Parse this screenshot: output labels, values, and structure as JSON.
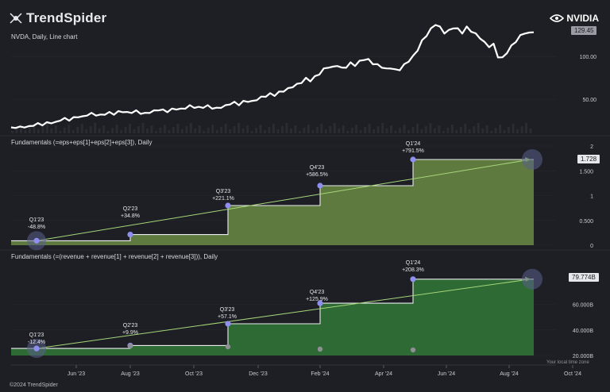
{
  "header": {
    "logo_text": "TrendSpider",
    "brand": "NVIDIA",
    "chart_title": "NVDA, Daily, Line chart",
    "price_badge": "129.45",
    "copyright": "©2024 TrendSpider",
    "timezone_note": "Your local time zone"
  },
  "colors": {
    "background": "#1e1f24",
    "price_line": "#ffffff",
    "eps_fill": "#5e7a3f",
    "rev_fill": "#2e6a34",
    "trend": "#a6d77a",
    "marker": "#8f8ff0"
  },
  "chart_data": [
    {
      "type": "line",
      "title": "NVDA, Daily, Line chart",
      "ylim": [
        12,
        142
      ],
      "y_ticks": [
        "50.00",
        "100.00"
      ],
      "series": [
        {
          "values": [
            16,
            17.5,
            17,
            18,
            17.5,
            20,
            21,
            20.5,
            22,
            23,
            22.5,
            26,
            27,
            26,
            28,
            30,
            29,
            32,
            33,
            32,
            31,
            33,
            34,
            33,
            35,
            36,
            34,
            35,
            36,
            34,
            33,
            35,
            36,
            38,
            37,
            36,
            38,
            39,
            38,
            40,
            42,
            41,
            40,
            41,
            42,
            40,
            39,
            41,
            42,
            45,
            46,
            44,
            47,
            48,
            47,
            50,
            52,
            54,
            56,
            55,
            58,
            60,
            62,
            65,
            67,
            70,
            74,
            72,
            76,
            80,
            85,
            88,
            87,
            90,
            86,
            88,
            92,
            90,
            94,
            97,
            96,
            92,
            90,
            88,
            85,
            87,
            84,
            85,
            90,
            95,
            100,
            108,
            118,
            125,
            132,
            138,
            134,
            128,
            130,
            134,
            132,
            128,
            134,
            130,
            126,
            122,
            116,
            112,
            114,
            100,
            98,
            105,
            112,
            118,
            124,
            128,
            127,
            129.45
          ]
        }
      ]
    },
    {
      "type": "line",
      "title": "Fundamentals (=eps+eps[1]+eps[2]+eps[3]), Daily",
      "ylim": [
        0,
        2
      ],
      "y_ticks": [
        "0",
        "0.500",
        "1",
        "1.500",
        "2"
      ],
      "value_badge": "1.728",
      "steps": [
        0.09,
        0.215,
        0.8,
        1.2,
        1.728
      ],
      "labels": [
        {
          "quarter": "Q1'23",
          "change": "-48.8%"
        },
        {
          "quarter": "Q2'23",
          "change": "+34.8%"
        },
        {
          "quarter": "Q3'23",
          "change": "+221.1%"
        },
        {
          "quarter": "Q4'23",
          "change": "+586.5%"
        },
        {
          "quarter": "Q1'24",
          "change": "+791.5%"
        }
      ]
    },
    {
      "type": "line",
      "title": "Fundamentals (=(revenue + revenue[1] + revenue[2] + revenue[3])), Daily",
      "ylim": [
        20,
        84
      ],
      "y_ticks": [
        "20.000B",
        "40.000B",
        "60.000B"
      ],
      "value_badge": "79.774B",
      "steps": [
        25.5,
        27.8,
        44.87,
        60.92,
        79.774
      ],
      "labels": [
        {
          "quarter": "Q1'23",
          "change": "-12.4%"
        },
        {
          "quarter": "Q2'23",
          "change": "+9.9%"
        },
        {
          "quarter": "Q3'23",
          "change": "+57.1%"
        },
        {
          "quarter": "Q4'23",
          "change": "+125.9%"
        },
        {
          "quarter": "Q1'24",
          "change": "+208.3%"
        }
      ]
    }
  ],
  "x_axis": {
    "ticks": [
      "Jun '23",
      "Aug '23",
      "Oct '23",
      "Dec '23",
      "Feb '24",
      "Apr '24",
      "Jun '24",
      "Aug '24",
      "Oct '24"
    ]
  }
}
